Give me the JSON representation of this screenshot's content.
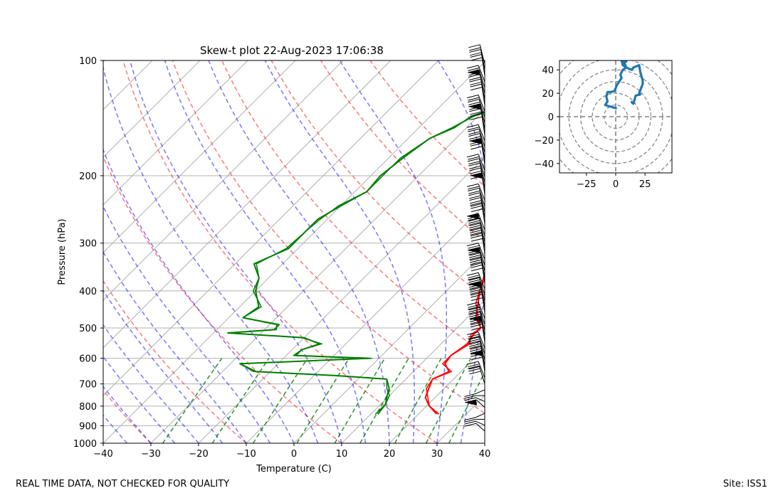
{
  "chart_data": [
    {
      "type": "line",
      "subtype": "skew-t log-p",
      "title": "Skew-t plot 22-Aug-2023 17:06:38",
      "xlabel": "Temperature (C)",
      "ylabel": "Pressure (hPa)",
      "xlim": [
        -40,
        40
      ],
      "ylim": [
        1000,
        100
      ],
      "x_ticks": [
        -40,
        -30,
        -20,
        -10,
        0,
        10,
        20,
        30,
        40
      ],
      "y_ticks": [
        100,
        200,
        300,
        400,
        500,
        600,
        700,
        800,
        900,
        1000
      ],
      "grid": true,
      "series": [
        {
          "name": "temperature",
          "color": "#ff0000",
          "points": [
            [
              840,
              24.3
            ],
            [
              800,
              20.6
            ],
            [
              760,
              18.0
            ],
            [
              720,
              16.8
            ],
            [
              680,
              15.6
            ],
            [
              650,
              17.5
            ],
            [
              620,
              15.0
            ],
            [
              590,
              14.5
            ],
            [
              550,
              15.5
            ],
            [
              520,
              14.8
            ],
            [
              500,
              15.0
            ],
            [
              470,
              11.8
            ],
            [
              430,
              9.2
            ],
            [
              400,
              7.0
            ],
            [
              360,
              4.4
            ],
            [
              330,
              3.2
            ],
            [
              300,
              2.0
            ],
            [
              270,
              0.1
            ],
            [
              240,
              -2.2
            ],
            [
              220,
              -3.6
            ],
            [
              200,
              -5.0
            ],
            [
              180,
              -7.2
            ],
            [
              160,
              -10.0
            ],
            [
              140,
              -12.5
            ],
            [
              125,
              -15.1
            ],
            [
              116,
              -17.0
            ],
            [
              110,
              -14.8
            ],
            [
              105,
              -12.2
            ],
            [
              100,
              -9.9
            ]
          ]
        },
        {
          "name": "dewpoint",
          "color": "#008000",
          "points": [
            [
              840,
              11.5
            ],
            [
              790,
              11.0
            ],
            [
              750,
              9.5
            ],
            [
              720,
              8.5
            ],
            [
              680,
              6.0
            ],
            [
              665,
              -6.0
            ],
            [
              650,
              -23.0
            ],
            [
              620,
              -28.0
            ],
            [
              600,
              -2.0
            ],
            [
              590,
              -18.0
            ],
            [
              570,
              -18.0
            ],
            [
              550,
              -15.5
            ],
            [
              530,
              -20.0
            ],
            [
              515,
              -37.0
            ],
            [
              505,
              -28.0
            ],
            [
              490,
              -28.0
            ],
            [
              470,
              -37.0
            ],
            [
              440,
              -36.0
            ],
            [
              400,
              -40.0
            ],
            [
              370,
              -42.0
            ],
            [
              340,
              -46.0
            ],
            [
              310,
              -42.0
            ],
            [
              280,
              -42.0
            ],
            [
              260,
              -42.0
            ],
            [
              240,
              -40.0
            ],
            [
              220,
              -37.5
            ],
            [
              200,
              -38.0
            ],
            [
              180,
              -37.0
            ],
            [
              160,
              -35.5
            ],
            [
              150,
              -33.0
            ],
            [
              140,
              -31.0
            ],
            [
              130,
              -26.5
            ],
            [
              125,
              -24.5
            ],
            [
              120,
              -24.0
            ],
            [
              115,
              -22.5
            ],
            [
              110,
              -21.0
            ],
            [
              105,
              -20.0
            ],
            [
              100,
              -18.0
            ]
          ]
        }
      ],
      "reference_lines": {
        "dry_adiabats": {
          "color": "#ff0000",
          "style": "dashed"
        },
        "moist_adiabats": {
          "color": "#0000ff",
          "style": "dashed"
        },
        "mixing_ratio_lines": {
          "color": "#008000",
          "style": "dashed"
        },
        "isotherms": {
          "color": "#808080",
          "style": "solid"
        }
      },
      "wind_barbs": {
        "color": "#000000",
        "location": "right edge",
        "pressure_range": [
          930,
          100
        ]
      }
    },
    {
      "type": "line",
      "subtype": "hodograph",
      "title": "",
      "xlim": [
        -48,
        48
      ],
      "ylim": [
        -48,
        48
      ],
      "x_ticks": [
        -25,
        0,
        25
      ],
      "y_ticks": [
        40,
        20,
        0,
        -20,
        -40
      ],
      "ring_spacing": 10,
      "series": [
        {
          "name": "wind",
          "color": "#1f77b4",
          "points": [
            [
              1,
              7
            ],
            [
              -6,
              9
            ],
            [
              -9,
              10
            ],
            [
              -7,
              13
            ],
            [
              -8,
              17
            ],
            [
              -7,
              21
            ],
            [
              -4,
              21
            ],
            [
              -1,
              22
            ],
            [
              1,
              27
            ],
            [
              3,
              30
            ],
            [
              5,
              33
            ],
            [
              4,
              36
            ],
            [
              6,
              40
            ],
            [
              9,
              42
            ],
            [
              7,
              47
            ],
            [
              9,
              47
            ],
            [
              5,
              48
            ],
            [
              6,
              44
            ],
            [
              11,
              41
            ],
            [
              14,
              40
            ],
            [
              15,
              42
            ],
            [
              20,
              44
            ],
            [
              21,
              38
            ],
            [
              23,
              31
            ],
            [
              23,
              28
            ],
            [
              20,
              20
            ],
            [
              21,
              19
            ],
            [
              17,
              18
            ],
            [
              16,
              14
            ],
            [
              15,
              11
            ],
            [
              13,
              13
            ]
          ]
        }
      ]
    }
  ],
  "footer": {
    "left": "REAL TIME DATA, NOT CHECKED FOR QUALITY",
    "right": "Site: ISS1"
  }
}
